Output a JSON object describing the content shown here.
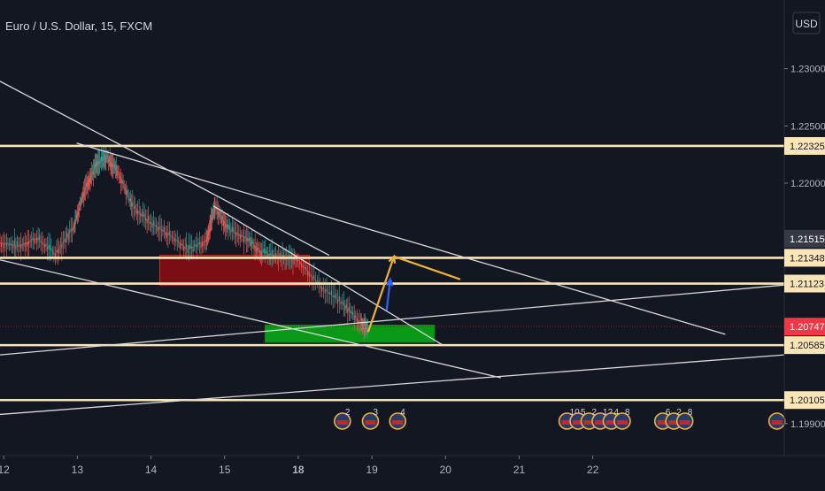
{
  "header": {
    "symbol_title": "Euro / U.S. Dollar, 15, FXCM",
    "currency_button": "USD"
  },
  "colors": {
    "background": "#131722",
    "level_line": "#fbe5b6",
    "trend_line": "#d8d8d8",
    "resistance_zone": "#7a0e14",
    "support_zone": "#089a16",
    "candle_up": "#26a69a",
    "candle_down": "#ef5350",
    "price_tag_red": "#f23645",
    "arrow_orange": "#f0b13a",
    "arrow_blue": "#2962ff",
    "axis_text": "#b2b5be"
  },
  "chart_data": {
    "type": "line",
    "title": "Euro / U.S. Dollar, 15, FXCM",
    "xlabel": "",
    "ylabel": "",
    "x_ticks": [
      "12",
      "13",
      "14",
      "15",
      "18",
      "19",
      "20",
      "21",
      "22"
    ],
    "x_tick_bold": [
      "18"
    ],
    "y_ticks": [
      "1.23000",
      "1.22500",
      "1.22000",
      "1.19900"
    ],
    "ylim": [
      1.1962,
      1.236
    ],
    "xlim": [
      11.95,
      22.6
    ],
    "grid": false,
    "price_tags": [
      {
        "price": 1.22325,
        "label": "1.22325",
        "style": "level"
      },
      {
        "price": 1.21515,
        "label": "1.21515",
        "style": "gray"
      },
      {
        "price": 1.21348,
        "label": "1.21348",
        "style": "level"
      },
      {
        "price": 1.21123,
        "label": "1.21123",
        "style": "level"
      },
      {
        "price": 1.20747,
        "label": "1.20747",
        "style": "current"
      },
      {
        "price": 1.20585,
        "label": "1.20585",
        "style": "level"
      },
      {
        "price": 1.20105,
        "label": "1.20105",
        "style": "level"
      }
    ],
    "horizontal_levels": [
      1.22325,
      1.21348,
      1.21123,
      1.20585,
      1.20105
    ],
    "current_price": 1.20747,
    "zones": [
      {
        "name": "resistance",
        "x0": 14.12,
        "x1": 16.15,
        "y0": 1.2137,
        "y1": 1.2111,
        "color": "#7a0e14"
      },
      {
        "name": "support",
        "x0": 15.55,
        "x1": 17.85,
        "y0": 1.2076,
        "y1": 1.2061,
        "color": "#089a16"
      }
    ],
    "trend_lines": [
      {
        "x0": 11.95,
        "y0": 1.2289,
        "x1": 16.42,
        "y1": 1.2137
      },
      {
        "x0": 14.85,
        "y0": 1.218,
        "x1": 17.95,
        "y1": 1.2059
      },
      {
        "x0": 11.95,
        "y0": 1.2133,
        "x1": 18.75,
        "y1": 1.203
      },
      {
        "x0": 11.95,
        "y0": 1.205,
        "x1": 22.6,
        "y1": 1.2111
      },
      {
        "x0": 11.95,
        "y0": 1.1998,
        "x1": 22.6,
        "y1": 1.205
      },
      {
        "x0": 12.99,
        "y0": 1.2235,
        "x1": 21.8,
        "y1": 1.2068
      }
    ],
    "projection_arrows": [
      {
        "x0": 16.95,
        "y0": 1.207,
        "x1": 17.3,
        "y1": 1.2136,
        "color": "#f0b13a"
      },
      {
        "x0": 17.3,
        "y0": 1.2136,
        "x1": 18.2,
        "y1": 1.2116,
        "color": "#f0b13a"
      },
      {
        "x0": 17.2,
        "y0": 1.2089,
        "x1": 17.25,
        "y1": 1.2116,
        "color": "#2962ff"
      }
    ],
    "price_series": {
      "name": "EUR/USD",
      "x": [
        11.95,
        12.2,
        12.45,
        12.7,
        12.95,
        13.1,
        13.25,
        13.4,
        13.55,
        13.75,
        14.0,
        14.25,
        14.5,
        14.75,
        14.87,
        15.05,
        15.3,
        15.5,
        15.75,
        16.0,
        16.3,
        16.6,
        16.85,
        16.95
      ],
      "y": [
        1.2148,
        1.2145,
        1.2152,
        1.2138,
        1.2162,
        1.2195,
        1.2215,
        1.2223,
        1.221,
        1.218,
        1.2165,
        1.2155,
        1.2142,
        1.215,
        1.218,
        1.216,
        1.2152,
        1.214,
        1.2135,
        1.2133,
        1.211,
        1.2095,
        1.2078,
        1.2072
      ]
    },
    "event_icons": [
      {
        "x": 16.6,
        "label": "2"
      },
      {
        "x": 16.98,
        "label": "3"
      },
      {
        "x": 17.35,
        "label": "4"
      },
      {
        "x": 19.65,
        "label": "10"
      },
      {
        "x": 19.8,
        "label": "5"
      },
      {
        "x": 19.95,
        "label": "2"
      },
      {
        "x": 20.1,
        "label": "12"
      },
      {
        "x": 20.25,
        "label": "4"
      },
      {
        "x": 20.4,
        "label": "8"
      },
      {
        "x": 20.95,
        "label": "6"
      },
      {
        "x": 21.1,
        "label": "2"
      },
      {
        "x": 21.25,
        "label": "8"
      },
      {
        "x": 22.5,
        "label": ""
      }
    ]
  }
}
